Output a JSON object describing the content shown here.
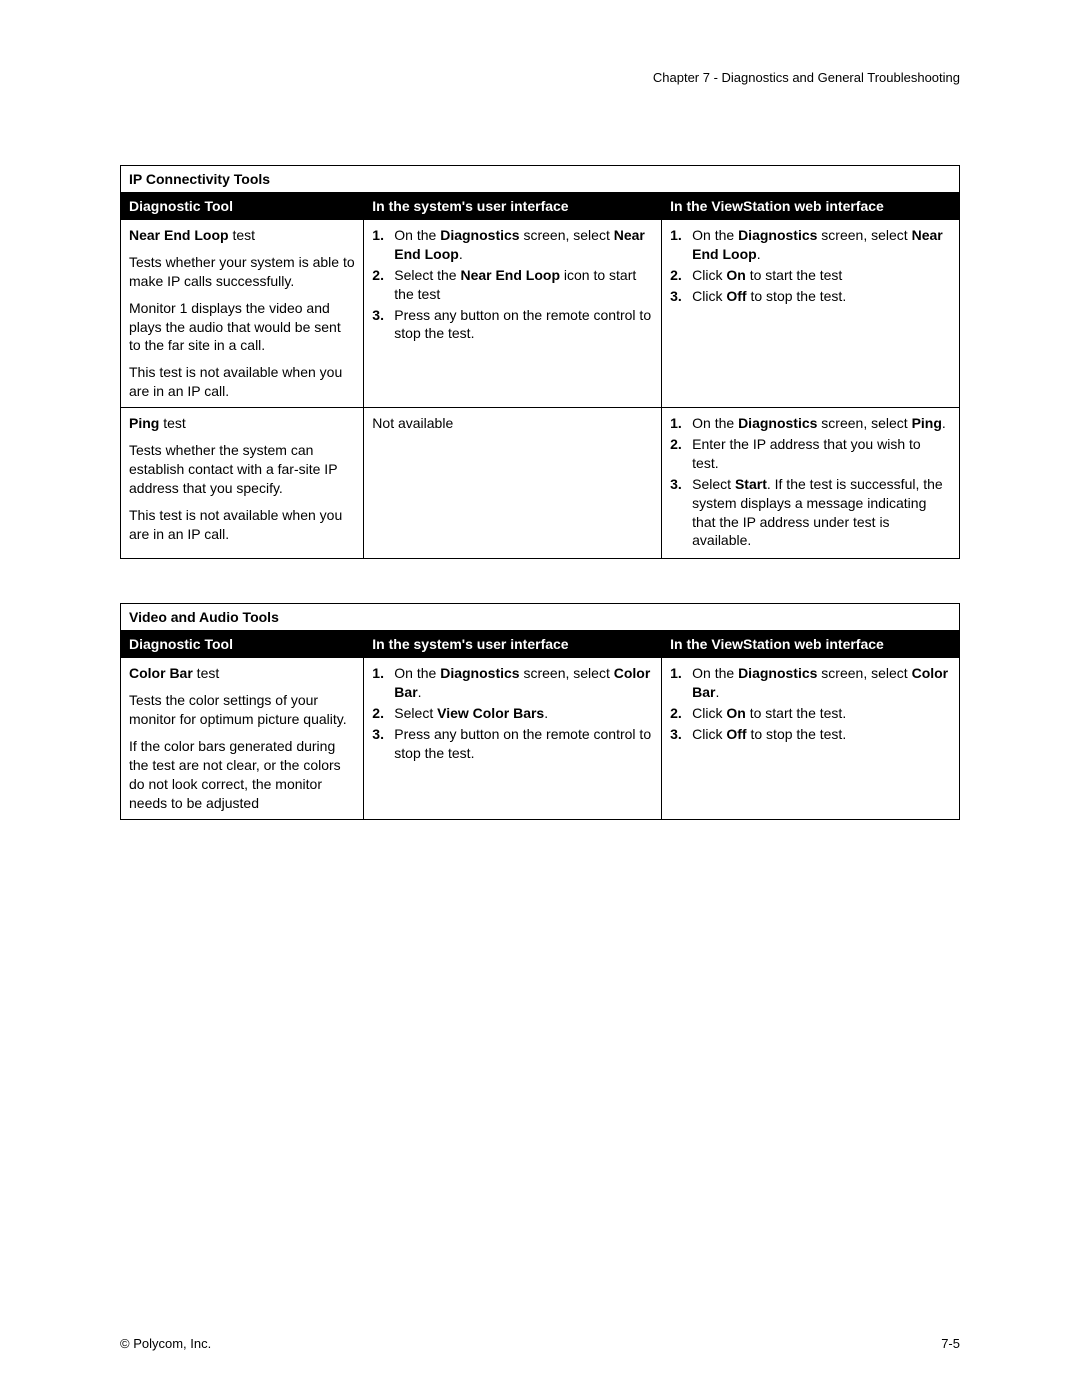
{
  "header": {
    "chapter": "Chapter 7 - Diagnostics and General Troubleshooting"
  },
  "footer": {
    "left": "© Polycom, Inc.",
    "right": "7-5"
  },
  "table1": {
    "title": "IP Connectivity Tools",
    "columns": {
      "c1": "Diagnostic Tool",
      "c2": "In the system's user interface",
      "c3": "In the ViewStation web interface"
    },
    "row1": {
      "tool": {
        "title_bold": "Near End Loop",
        "title_rest": " test",
        "p1": "Tests whether your system is able to make IP calls successfully.",
        "p2": "Monitor 1 displays the video and plays the audio that would be sent to the far site in a call.",
        "p3": "This test is not available when you are in an IP call."
      },
      "ui": {
        "s1a": "On the ",
        "s1b": "Diagnostics",
        "s1c": " screen, select ",
        "s1d": "Near End Loop",
        "s1e": ".",
        "s2a": "Select the ",
        "s2b": "Near End Loop",
        "s2c": " icon to start the test",
        "s3": "Press any button on the remote control to stop the test."
      },
      "web": {
        "s1a": "On the ",
        "s1b": "Diagnostics",
        "s1c": " screen, select ",
        "s1d": "Near End Loop",
        "s1e": ".",
        "s2a": "Click ",
        "s2b": "On",
        "s2c": " to start the test",
        "s3a": "Click ",
        "s3b": "Off",
        "s3c": " to stop the test."
      }
    },
    "row2": {
      "tool": {
        "title_bold": "Ping",
        "title_rest": " test",
        "p1": "Tests whether the system can establish contact with a far-site IP address that you specify.",
        "p2": "This test is not available when you are in an IP call."
      },
      "ui": {
        "na": "Not available"
      },
      "web": {
        "s1a": "On the ",
        "s1b": "Diagnostics",
        "s1c": " screen, select ",
        "s1d": "Ping",
        "s1e": ".",
        "s2": "Enter the IP address that you wish to test.",
        "s3a": "Select ",
        "s3b": "Start",
        "s3c": ". If the test is successful, the system displays a message indicating that the IP address under test is available."
      }
    }
  },
  "table2": {
    "title": "Video and Audio Tools",
    "columns": {
      "c1": "Diagnostic Tool",
      "c2": "In the system's user interface",
      "c3": "In the ViewStation web interface"
    },
    "row1": {
      "tool": {
        "title_bold": "Color Bar",
        "title_rest": " test",
        "p1": "Tests the color settings of your monitor for optimum picture quality.",
        "p2": "If the color bars generated during the test are not clear, or the colors do not look correct, the monitor needs to be adjusted"
      },
      "ui": {
        "s1a": "On the ",
        "s1b": "Diagnostics",
        "s1c": " screen, select ",
        "s1d": "Color Bar",
        "s1e": ".",
        "s2a": "Select ",
        "s2b": "View Color Bars",
        "s2c": ".",
        "s3": "Press any button on the remote control to stop the test."
      },
      "web": {
        "s1a": "On the ",
        "s1b": "Diagnostics",
        "s1c": " screen, select ",
        "s1d": "Color Bar",
        "s1e": ".",
        "s2a": "Click ",
        "s2b": "On",
        "s2c": " to start the test.",
        "s3a": "Click ",
        "s3b": "Off",
        "s3c": " to stop the test."
      }
    }
  }
}
